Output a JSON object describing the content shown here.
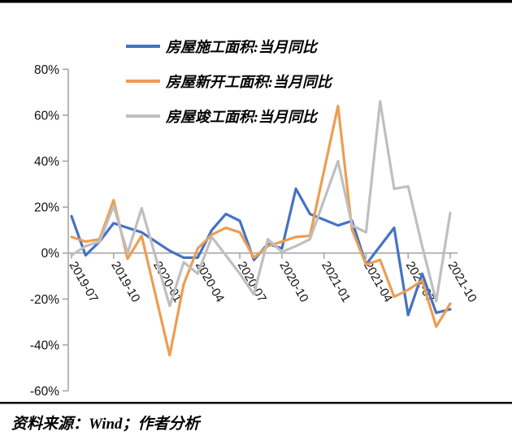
{
  "source": {
    "text": "资料来源：Wind；作者分析"
  },
  "colors": {
    "construction_blue": "#4472C4",
    "new_starts_orange": "#ED9D53",
    "completions_gray": "#BFBFBF",
    "axis_gray": "#A6A6A6",
    "border_black": "#000000"
  },
  "chart_data": {
    "type": "line",
    "title": "",
    "xlabel": "",
    "ylabel": "",
    "legend_position": "top-left-stacked",
    "grid": false,
    "ylim": [
      -60,
      80
    ],
    "y_tick_step": 20,
    "y_tick_labels": [
      "80%",
      "60%",
      "40%",
      "20%",
      "0%",
      "-20%",
      "-40%",
      "-60%"
    ],
    "y_tick_values": [
      80,
      60,
      40,
      20,
      0,
      -20,
      -40,
      -60
    ],
    "x_label_every": 3,
    "x": [
      "2019-07",
      "2019-08",
      "2019-09",
      "2019-10",
      "2019-11",
      "2019-12",
      "2020-01",
      "2020-02",
      "2020-03",
      "2020-04",
      "2020-05",
      "2020-06",
      "2020-07",
      "2020-08",
      "2020-09",
      "2020-10",
      "2020-11",
      "2020-12",
      "2021-01",
      "2021-02",
      "2021-03",
      "2021-04",
      "2021-05",
      "2021-06",
      "2021-07",
      "2021-08",
      "2021-09",
      "2021-10"
    ],
    "x_tick_labels": [
      "2019-07",
      "2019-10",
      "2020-01",
      "2020-04",
      "2020-07",
      "2020-10",
      "2021-01",
      "2021-04",
      "2021-07",
      "2021-10"
    ],
    "series": [
      {
        "name": "房屋施工面积:当月同比",
        "color": "#4472C4",
        "values": [
          16,
          -1,
          5,
          13,
          11,
          9,
          null,
          1,
          -2,
          -2,
          10,
          17,
          14,
          -3,
          4,
          2,
          28,
          17,
          null,
          12,
          14,
          -5,
          3,
          11,
          -27,
          -9,
          -26,
          -24.5
        ]
      },
      {
        "name": "房屋新开工面积:当月同比",
        "color": "#ED9D53",
        "values": [
          7,
          5,
          6,
          23,
          -2.5,
          7.5,
          null,
          -44.5,
          -13.5,
          2,
          8,
          11,
          9,
          -2,
          3,
          5,
          7,
          7.5,
          null,
          64,
          10,
          -5,
          -3,
          -19,
          -16,
          -12,
          -32,
          -22
        ]
      },
      {
        "name": "房屋竣工面积:当月同比",
        "color": "#BFBFBF",
        "values": [
          -1,
          3,
          5,
          20.5,
          0,
          19.5,
          null,
          -23,
          -4,
          -9,
          7,
          -1,
          -9,
          -18,
          6,
          0.5,
          3,
          6,
          null,
          40,
          12,
          9,
          66,
          28,
          29,
          3,
          -21,
          17.5
        ]
      }
    ]
  }
}
